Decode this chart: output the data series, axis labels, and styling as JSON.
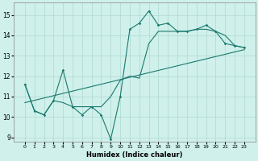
{
  "xlabel": "Humidex (Indice chaleur)",
  "x_values": [
    0,
    1,
    2,
    3,
    4,
    5,
    6,
    7,
    8,
    9,
    10,
    11,
    12,
    13,
    14,
    15,
    16,
    17,
    18,
    19,
    20,
    21,
    22,
    23
  ],
  "y_main": [
    11.6,
    10.3,
    10.1,
    10.8,
    12.3,
    10.5,
    10.1,
    10.5,
    10.1,
    8.9,
    11.0,
    14.3,
    14.6,
    15.2,
    14.5,
    14.6,
    14.2,
    14.2,
    14.3,
    14.5,
    14.2,
    13.6,
    13.5,
    13.4
  ],
  "y_smooth": [
    11.6,
    10.3,
    10.1,
    10.8,
    10.7,
    10.5,
    10.5,
    10.5,
    10.5,
    11.0,
    11.8,
    12.0,
    11.9,
    13.6,
    14.2,
    14.2,
    14.2,
    14.2,
    14.3,
    14.3,
    14.2,
    14.0,
    13.5,
    13.4
  ],
  "trend_x": [
    0,
    23
  ],
  "trend_y": [
    10.7,
    13.3
  ],
  "ylim": [
    8.8,
    15.6
  ],
  "yticks": [
    9,
    10,
    11,
    12,
    13,
    14,
    15
  ],
  "xticks": [
    0,
    1,
    2,
    3,
    4,
    5,
    6,
    7,
    8,
    9,
    10,
    11,
    12,
    13,
    14,
    15,
    16,
    17,
    18,
    19,
    20,
    21,
    22,
    23
  ],
  "line_color": "#1a7a6e",
  "bg_color": "#cff0eb",
  "grid_color": "#aed8d0",
  "fig_bg": "#cff0eb"
}
